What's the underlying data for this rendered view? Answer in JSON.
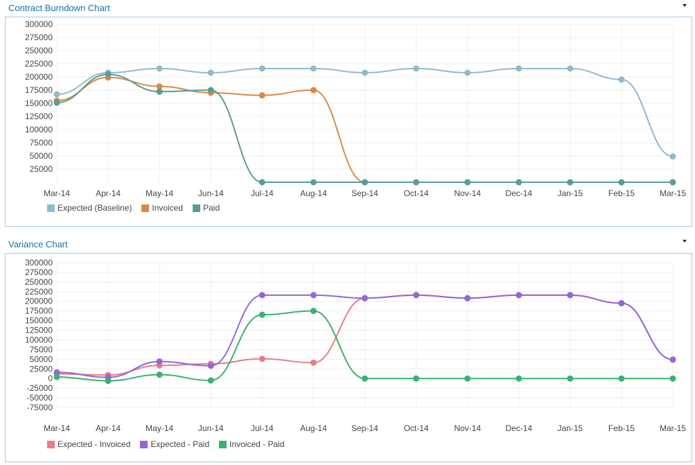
{
  "charts": {
    "burndown": {
      "title": "Contract Burndown Chart",
      "legend": [
        "Expected (Baseline)",
        "Invoiced",
        "Paid"
      ]
    },
    "variance": {
      "title": "Variance Chart",
      "legend": [
        "Expected - Invoiced",
        "Expected - Paid",
        "Invoiced - Paid"
      ]
    }
  },
  "chart_data": [
    {
      "type": "line",
      "title": "Contract Burndown Chart",
      "xlabel": "",
      "ylabel": "",
      "categories": [
        "Mar-14",
        "Apr-14",
        "May-14",
        "Jun-14",
        "Jul-14",
        "Aug-14",
        "Sep-14",
        "Oct-14",
        "Nov-14",
        "Dec-14",
        "Jan-15",
        "Feb-15",
        "Mar-15"
      ],
      "ylim": [
        0,
        300000
      ],
      "yticks": [
        25000,
        50000,
        75000,
        100000,
        125000,
        150000,
        175000,
        200000,
        225000,
        250000,
        275000,
        300000
      ],
      "grid": true,
      "legend_position": "bottom-left",
      "series": [
        {
          "name": "Expected (Baseline)",
          "color": "#93b8cc",
          "values": [
            167000,
            208000,
            216000,
            208000,
            216000,
            216000,
            208000,
            216000,
            208000,
            216000,
            216000,
            195000,
            49000
          ]
        },
        {
          "name": "Invoiced",
          "color": "#d98a45",
          "values": [
            155000,
            199000,
            182000,
            170000,
            165000,
            175000,
            0,
            0,
            0,
            0,
            0,
            0,
            0
          ]
        },
        {
          "name": "Paid",
          "color": "#5c9a9b",
          "values": [
            151000,
            205000,
            172000,
            175000,
            0,
            0,
            0,
            0,
            0,
            0,
            0,
            0,
            0
          ]
        }
      ]
    },
    {
      "type": "line",
      "title": "Variance Chart",
      "xlabel": "",
      "ylabel": "",
      "categories": [
        "Mar-14",
        "Apr-14",
        "May-14",
        "Jun-14",
        "Jul-14",
        "Aug-14",
        "Sep-14",
        "Oct-14",
        "Nov-14",
        "Dec-14",
        "Jan-15",
        "Feb-15",
        "Mar-15"
      ],
      "ylim": [
        -75000,
        300000
      ],
      "yticks": [
        -75000,
        -50000,
        -25000,
        0,
        25000,
        50000,
        75000,
        100000,
        125000,
        150000,
        175000,
        200000,
        225000,
        250000,
        275000,
        300000
      ],
      "grid": true,
      "legend_position": "bottom-left",
      "series": [
        {
          "name": "Expected - Invoiced",
          "color": "#e87c86",
          "values": [
            12000,
            9000,
            34000,
            38000,
            51000,
            41000,
            208000,
            216000,
            208000,
            216000,
            216000,
            195000,
            49000
          ]
        },
        {
          "name": "Expected - Paid",
          "color": "#9466d9",
          "values": [
            16000,
            3000,
            44000,
            33000,
            216000,
            216000,
            208000,
            216000,
            208000,
            216000,
            216000,
            195000,
            49000
          ]
        },
        {
          "name": "Invoiced - Paid",
          "color": "#3ab170",
          "values": [
            4000,
            -6000,
            10000,
            -5000,
            165000,
            175000,
            0,
            0,
            0,
            0,
            0,
            0,
            0
          ]
        }
      ]
    }
  ]
}
